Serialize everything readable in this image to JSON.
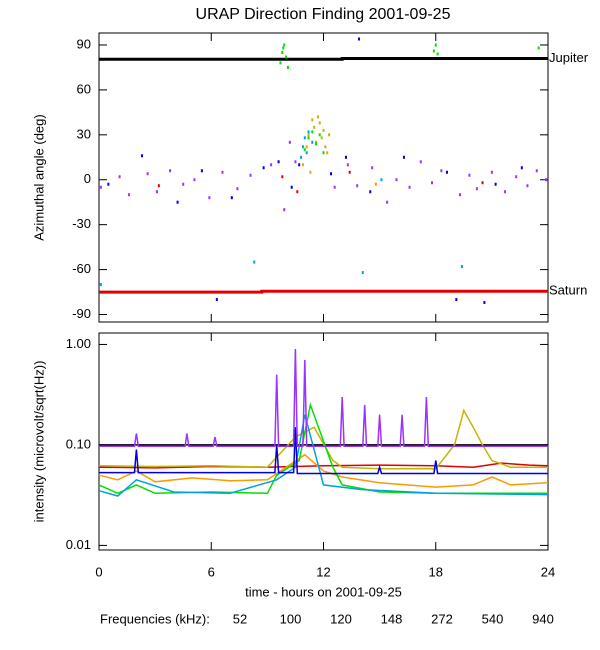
{
  "chart_data": [
    {
      "type": "scatter",
      "title": "URAP Direction Finding  2001-09-25",
      "ylabel": "Azimuthal angle (deg)",
      "xlim": [
        0,
        24
      ],
      "xticks": [
        0,
        6,
        12,
        18,
        24
      ],
      "ylim": [
        -95,
        98
      ],
      "yticks": [
        -90,
        -60,
        -30,
        0,
        30,
        60,
        90
      ],
      "lines": [
        {
          "name": "Jupiter",
          "color": "#000000",
          "x": [
            0,
            13,
            13,
            24
          ],
          "values": [
            80.5,
            80.5,
            81,
            81
          ]
        },
        {
          "name": "Saturn",
          "color": "#e00000",
          "x": [
            0,
            8.7,
            8.7,
            24
          ],
          "values": [
            -75,
            -75,
            -74.5,
            -74.5
          ]
        }
      ],
      "series": [
        {
          "color": "#e00000",
          "x": [
            3.2,
            9.8,
            10.6,
            13.4,
            20.5
          ],
          "values": [
            -4,
            2,
            -8,
            5,
            -2
          ]
        },
        {
          "color": "#ff9900",
          "x": [
            10.9,
            11.1,
            11.3,
            12.2,
            14.8
          ],
          "values": [
            10,
            22,
            5,
            18,
            -3
          ]
        },
        {
          "color": "#c8b400",
          "x": [
            11.2,
            11.4,
            11.5,
            11.6,
            11.8,
            11.9,
            12.0,
            12.1,
            12.3,
            11.7
          ],
          "values": [
            30,
            40,
            35,
            25,
            38,
            28,
            33,
            22,
            30,
            42
          ]
        },
        {
          "color": "#00e000",
          "x": [
            9.7,
            9.8,
            9.9,
            10.0,
            10.1,
            9.85,
            17.9,
            18.0,
            18.1,
            11.0,
            11.2,
            11.4,
            11.6,
            11.8,
            12.0,
            23.5
          ],
          "values": [
            78,
            85,
            90,
            82,
            75,
            88,
            86,
            90,
            84,
            20,
            28,
            32,
            24,
            30,
            18,
            88
          ]
        },
        {
          "color": "#00a0e0",
          "x": [
            10.8,
            10.9,
            11.0,
            11.1,
            11.2,
            11.4,
            15.1,
            8.3,
            14.1,
            19.4,
            0.1
          ],
          "values": [
            15,
            22,
            28,
            18,
            32,
            25,
            0,
            -55,
            -62,
            -58,
            -70
          ]
        },
        {
          "color": "#0000e0",
          "x": [
            0.5,
            2.3,
            4.2,
            5.5,
            7.1,
            8.8,
            9.6,
            10.3,
            10.7,
            12.4,
            13.2,
            14.5,
            16.3,
            18.6,
            21.2,
            22.6,
            6.3,
            13.9,
            19.1,
            20.6
          ],
          "values": [
            -3,
            16,
            -15,
            6,
            -12,
            8,
            12,
            -5,
            10,
            4,
            15,
            -8,
            15,
            5,
            -3,
            8,
            -80,
            94,
            -80,
            -82
          ]
        },
        {
          "color": "#9933ff",
          "x": [
            0.1,
            1.1,
            1.6,
            2.6,
            3.1,
            3.8,
            4.5,
            5.1,
            5.9,
            6.6,
            7.4,
            8.1,
            9.2,
            9.9,
            10.2,
            10.5,
            12.6,
            13.3,
            13.8,
            14.6,
            15.4,
            15.9,
            16.6,
            17.2,
            17.8,
            18.3,
            19.3,
            19.8,
            20.2,
            21.0,
            21.7,
            22.3,
            22.9,
            23.4,
            23.9
          ],
          "values": [
            -5,
            2,
            -10,
            4,
            -8,
            6,
            -3,
            0,
            -12,
            5,
            -6,
            3,
            10,
            -20,
            25,
            12,
            -5,
            10,
            -4,
            8,
            -15,
            0,
            -5,
            12,
            -2,
            6,
            -10,
            3,
            -6,
            5,
            -8,
            2,
            -4,
            6,
            0
          ]
        }
      ]
    },
    {
      "type": "line",
      "ylabel": "intensity (microvolt/sqrt(Hz))",
      "xlabel": "time - hours on 2001-09-25",
      "log_scale": true,
      "xlim": [
        0,
        24
      ],
      "xticks": [
        0,
        6,
        12,
        18,
        24
      ],
      "ylim": [
        0.009,
        1.3
      ],
      "yticks": [
        {
          "value": 0.01,
          "label": "0.01"
        },
        {
          "value": 0.1,
          "label": "0.10"
        },
        {
          "value": 1,
          "label": "1.00"
        }
      ],
      "legend_title": "Frequencies (kHz):",
      "lines": [
        {
          "color": "#000000",
          "x": [
            0,
            24
          ],
          "values": [
            0.1,
            0.1
          ]
        }
      ],
      "series": [
        {
          "name": "52",
          "color": "#e00000",
          "x": [
            0,
            3,
            6,
            9,
            12,
            15,
            18,
            20,
            21.5,
            23,
            24
          ],
          "values": [
            0.06,
            0.059,
            0.061,
            0.06,
            0.062,
            0.063,
            0.062,
            0.06,
            0.066,
            0.063,
            0.062
          ]
        },
        {
          "name": "100",
          "color": "#ff9900",
          "x": [
            0,
            1,
            2,
            3,
            5,
            7,
            9,
            10,
            11,
            12,
            13,
            15,
            18,
            20,
            21,
            22,
            24
          ],
          "values": [
            0.05,
            0.045,
            0.055,
            0.043,
            0.047,
            0.044,
            0.045,
            0.06,
            0.08,
            0.055,
            0.048,
            0.042,
            0.038,
            0.04,
            0.048,
            0.04,
            0.042
          ]
        },
        {
          "name": "120",
          "color": "#c8b400",
          "x": [
            0,
            3,
            6,
            9,
            10.5,
            11.5,
            12.5,
            13,
            15,
            18,
            19,
            19.5,
            20,
            20.5,
            21,
            22,
            24
          ],
          "values": [
            0.062,
            0.061,
            0.062,
            0.06,
            0.12,
            0.15,
            0.07,
            0.06,
            0.058,
            0.058,
            0.1,
            0.22,
            0.15,
            0.1,
            0.07,
            0.06,
            0.06
          ]
        },
        {
          "name": "148",
          "color": "#00e000",
          "x": [
            0,
            1,
            2,
            3,
            6,
            9,
            9.5,
            10.7,
            11.3,
            12.5,
            13,
            15,
            18,
            24
          ],
          "values": [
            0.04,
            0.033,
            0.04,
            0.033,
            0.034,
            0.033,
            0.05,
            0.07,
            0.25,
            0.06,
            0.04,
            0.034,
            0.033,
            0.033
          ]
        },
        {
          "name": "272",
          "color": "#00a0e0",
          "x": [
            0,
            1,
            2,
            4,
            7,
            9.5,
            10.5,
            11,
            12,
            14,
            18,
            24
          ],
          "values": [
            0.035,
            0.031,
            0.045,
            0.034,
            0.033,
            0.045,
            0.06,
            0.2,
            0.04,
            0.036,
            0.033,
            0.032
          ]
        },
        {
          "name": "540",
          "color": "#0000e0",
          "x": [
            0,
            1.9,
            2,
            2.1,
            9.4,
            9.5,
            9.6,
            10.4,
            10.5,
            10.6,
            14.9,
            15,
            15.1,
            17.9,
            18,
            18.1,
            24
          ],
          "values": [
            0.053,
            0.053,
            0.09,
            0.053,
            0.053,
            0.1,
            0.053,
            0.053,
            0.15,
            0.052,
            0.052,
            0.06,
            0.052,
            0.052,
            0.07,
            0.052,
            0.052
          ]
        },
        {
          "name": "940",
          "color": "#9933ff",
          "x": [
            0,
            1.9,
            2,
            2.1,
            4.6,
            4.7,
            4.8,
            6.1,
            6.2,
            6.3,
            9.4,
            9.5,
            9.6,
            10.4,
            10.5,
            10.6,
            10.9,
            11,
            11.1,
            12.9,
            13,
            13.1,
            14.1,
            14.2,
            14.3,
            14.9,
            15,
            15.1,
            16.1,
            16.2,
            16.3,
            17.4,
            17.5,
            17.6,
            24
          ],
          "values": [
            0.097,
            0.097,
            0.13,
            0.097,
            0.097,
            0.13,
            0.097,
            0.097,
            0.12,
            0.097,
            0.097,
            0.5,
            0.097,
            0.097,
            0.9,
            0.097,
            0.097,
            0.7,
            0.097,
            0.097,
            0.3,
            0.097,
            0.097,
            0.25,
            0.097,
            0.097,
            0.2,
            0.097,
            0.097,
            0.2,
            0.097,
            0.097,
            0.3,
            0.097,
            0.097
          ]
        }
      ]
    }
  ]
}
